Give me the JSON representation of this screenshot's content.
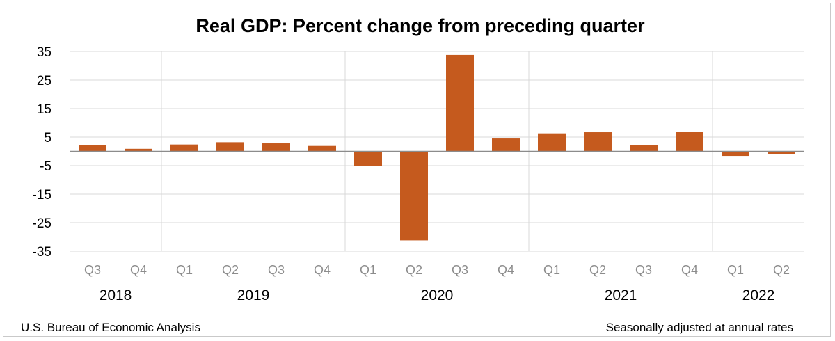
{
  "chart_data": {
    "type": "bar",
    "title": "Real GDP:  Percent change from preceding quarter",
    "xlabel": "",
    "ylabel": "",
    "ylim": [
      -35,
      35
    ],
    "yticks": [
      35,
      25,
      15,
      5,
      -5,
      -15,
      -25,
      -35
    ],
    "categories": [
      "Q3",
      "Q4",
      "Q1",
      "Q2",
      "Q3",
      "Q4",
      "Q1",
      "Q2",
      "Q3",
      "Q4",
      "Q1",
      "Q2",
      "Q3",
      "Q4",
      "Q1",
      "Q2"
    ],
    "values": [
      2.2,
      0.9,
      2.4,
      3.2,
      2.8,
      1.9,
      -5.1,
      -31.2,
      33.8,
      4.5,
      6.3,
      6.7,
      2.3,
      6.9,
      -1.6,
      -0.9
    ],
    "year_groups": [
      {
        "label": "2018",
        "start": 0,
        "count": 2
      },
      {
        "label": "2019",
        "start": 2,
        "count": 4
      },
      {
        "label": "2020",
        "start": 6,
        "count": 4
      },
      {
        "label": "2021",
        "start": 10,
        "count": 4
      },
      {
        "label": "2022",
        "start": 14,
        "count": 2
      }
    ],
    "grid": true,
    "bar_color": "#C55A1E"
  },
  "footer": {
    "source": "U.S. Bureau of Economic Analysis",
    "note": "Seasonally adjusted at annual rates"
  }
}
